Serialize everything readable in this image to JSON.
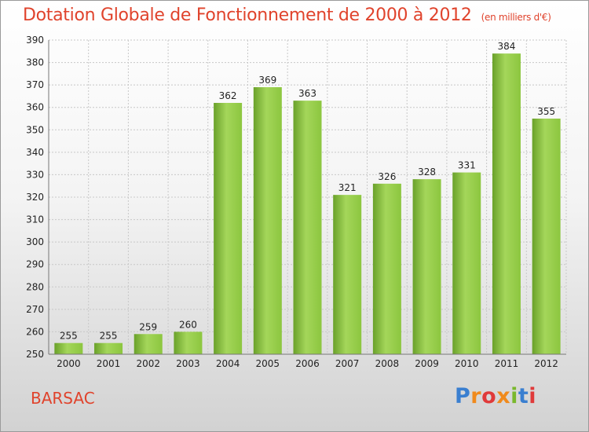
{
  "header": {
    "title": "Dotation Globale de Fonctionnement de 2000 à 2012",
    "unit": "(en milliers d'€)"
  },
  "footer": {
    "city": "BARSAC",
    "brand": "Proxiti"
  },
  "colors": {
    "bar": "#8cc63f",
    "bar_light": "#a4d65a",
    "bar_dark": "#6aa12a",
    "title": "#e0432c",
    "grid": "#c8c8c8"
  },
  "chart_data": {
    "type": "bar",
    "title": "Dotation Globale de Fonctionnement de 2000 à 2012",
    "subtitle": "(en milliers d'€)",
    "categories": [
      "2000",
      "2001",
      "2002",
      "2003",
      "2004",
      "2005",
      "2006",
      "2007",
      "2008",
      "2009",
      "2010",
      "2011",
      "2012"
    ],
    "values": [
      255,
      255,
      259,
      260,
      362,
      369,
      363,
      321,
      326,
      328,
      331,
      384,
      355
    ],
    "ylim": [
      250,
      390
    ],
    "yticks": [
      250,
      260,
      270,
      280,
      290,
      300,
      310,
      320,
      330,
      340,
      350,
      360,
      370,
      380,
      390
    ],
    "grid": true,
    "xlabel": "",
    "ylabel": ""
  }
}
